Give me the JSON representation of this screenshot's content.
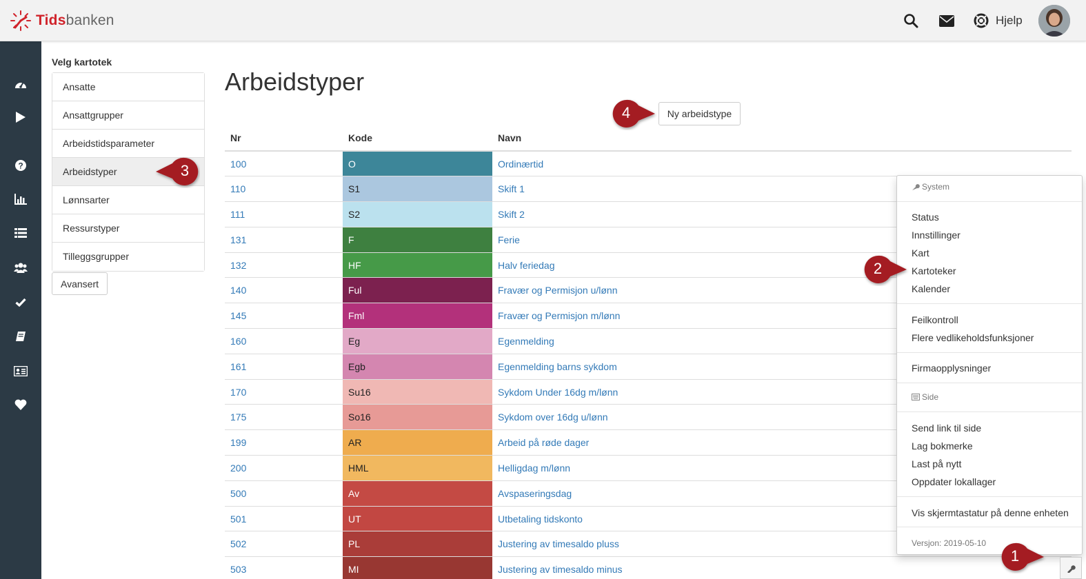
{
  "app": {
    "logo_red": "Tids",
    "logo_grey": "banken",
    "help_label": "Hjelp"
  },
  "colors": {
    "brand_red": "#d0232b",
    "sidebar_bg": "#2c3a45",
    "link": "#337ab7",
    "callout": "#a41f24"
  },
  "sidebar_icons": [
    "dashboard-icon",
    "play-icon",
    "question-icon",
    "bar-chart-icon",
    "list-icon",
    "users-icon",
    "check-icon",
    "book-icon",
    "id-card-icon",
    "heart-icon"
  ],
  "kartotek": {
    "title": "Velg kartotek",
    "items": [
      "Ansatte",
      "Ansattgrupper",
      "Arbeidstidsparameter",
      "Arbeidstyper",
      "Lønnsarter",
      "Ressurstyper",
      "Tilleggsgrupper"
    ],
    "active_index": 3,
    "advanced_button": "Avansert"
  },
  "main": {
    "title": "Arbeidstyper",
    "new_button": "Ny arbeidstype",
    "columns": [
      "Nr",
      "Kode",
      "Navn"
    ],
    "rows": [
      {
        "nr": "100",
        "kode": "O",
        "navn": "Ordinærtid",
        "color": "#3d8699",
        "text": "#fff"
      },
      {
        "nr": "110",
        "kode": "S1",
        "navn": "Skift 1",
        "color": "#abc7df",
        "text": "#222"
      },
      {
        "nr": "111",
        "kode": "S2",
        "navn": "Skift 2",
        "color": "#bbe1ee",
        "text": "#222"
      },
      {
        "nr": "131",
        "kode": "F",
        "navn": "Ferie",
        "color": "#3e8040",
        "text": "#fff"
      },
      {
        "nr": "132",
        "kode": "HF",
        "navn": "Halv feriedag",
        "color": "#469a48",
        "text": "#fff"
      },
      {
        "nr": "140",
        "kode": "Ful",
        "navn": "Fravær og Permisjon u/lønn",
        "color": "#7c214f",
        "text": "#fff"
      },
      {
        "nr": "145",
        "kode": "Fml",
        "navn": "Fravær og Permisjon m/lønn",
        "color": "#b3317b",
        "text": "#fff"
      },
      {
        "nr": "160",
        "kode": "Eg",
        "navn": "Egenmelding",
        "color": "#e2a9c7",
        "text": "#222"
      },
      {
        "nr": "161",
        "kode": "Egb",
        "navn": "Egenmelding barns sykdom",
        "color": "#d486b0",
        "text": "#222"
      },
      {
        "nr": "170",
        "kode": "Su16",
        "navn": "Sykdom Under 16dg m/lønn",
        "color": "#f0b8b4",
        "text": "#222"
      },
      {
        "nr": "175",
        "kode": "So16",
        "navn": "Sykdom over 16dg u/lønn",
        "color": "#e79a96",
        "text": "#222"
      },
      {
        "nr": "199",
        "kode": "AR",
        "navn": "Arbeid på røde dager",
        "color": "#efac4e",
        "text": "#222"
      },
      {
        "nr": "200",
        "kode": "HML",
        "navn": "Helligdag m/lønn",
        "color": "#f1b85f",
        "text": "#222"
      },
      {
        "nr": "500",
        "kode": "Av",
        "navn": "Avspaseringsdag",
        "color": "#c44a44",
        "text": "#fff"
      },
      {
        "nr": "501",
        "kode": "UT",
        "navn": "Utbetaling tidskonto",
        "color": "#c24742",
        "text": "#fff"
      },
      {
        "nr": "502",
        "kode": "PL",
        "navn": "Justering av timesaldo pluss",
        "color": "#aa3d39",
        "text": "#fff"
      },
      {
        "nr": "503",
        "kode": "MI",
        "navn": "Justering av timesaldo minus",
        "color": "#983732",
        "text": "#fff"
      }
    ]
  },
  "menu": {
    "system_header": "System",
    "system_items": [
      "Status",
      "Innstillinger",
      "Kart",
      "Kartoteker",
      "Kalender"
    ],
    "group2": [
      "Feilkontroll",
      "Flere vedlikeholdsfunksjoner"
    ],
    "group3": [
      "Firmaopplysninger"
    ],
    "side_header": "Side",
    "side_items": [
      "Send link til side",
      "Lag bokmerke",
      "Last på nytt",
      "Oppdater lokallager"
    ],
    "group5": [
      "Vis skjermtastatur på denne enheten"
    ],
    "version": "Versjon: 2019-05-10"
  },
  "callouts": [
    "1",
    "2",
    "3",
    "4"
  ]
}
